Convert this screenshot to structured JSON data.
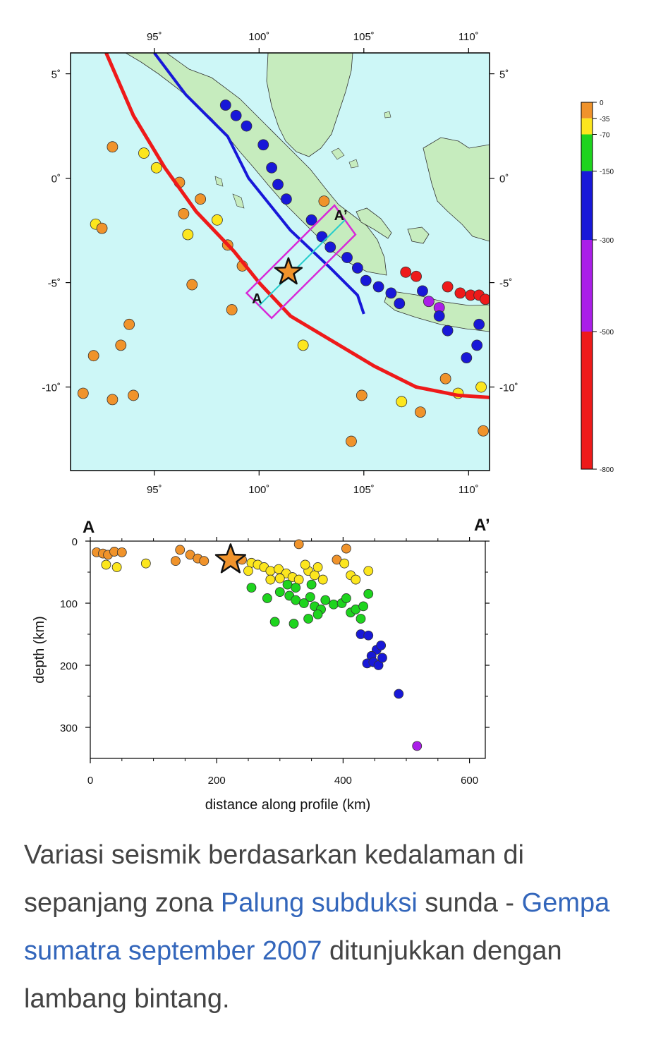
{
  "chart_data": [
    {
      "type": "scatter",
      "subtype": "map",
      "title": "",
      "xlabel": "",
      "ylabel": "",
      "xlim": [
        91,
        111
      ],
      "ylim": [
        -14,
        6
      ],
      "top_ticks": [
        {
          "v": 95,
          "t": "95˚"
        },
        {
          "v": 100,
          "t": "100˚"
        },
        {
          "v": 105,
          "t": "105˚"
        },
        {
          "v": 110,
          "t": "110˚"
        }
      ],
      "bottom_ticks": [
        {
          "v": 95,
          "t": "95˚"
        },
        {
          "v": 100,
          "t": "100˚"
        },
        {
          "v": 105,
          "t": "105˚"
        },
        {
          "v": 110,
          "t": "110˚"
        }
      ],
      "left_ticks": [
        {
          "v": 5,
          "t": "5˚"
        },
        {
          "v": 0,
          "t": "0˚"
        },
        {
          "v": -5,
          "t": "-5˚"
        },
        {
          "v": -10,
          "t": "-10˚"
        }
      ],
      "right_ticks": [
        {
          "v": 5,
          "t": "5˚"
        },
        {
          "v": 0,
          "t": "0˚"
        },
        {
          "v": -5,
          "t": "-5˚"
        },
        {
          "v": -10,
          "t": "-10˚"
        }
      ],
      "trench_line": [
        [
          92.7,
          6
        ],
        [
          94.0,
          3.0
        ],
        [
          95.5,
          0.5
        ],
        [
          97.0,
          -1.6
        ],
        [
          98.8,
          -3.5
        ],
        [
          100.0,
          -5.0
        ],
        [
          101.5,
          -6.6
        ],
        [
          103.5,
          -7.8
        ],
        [
          105.5,
          -9.0
        ],
        [
          107.5,
          -10.0
        ],
        [
          109.5,
          -10.4
        ],
        [
          111,
          -10.5
        ]
      ],
      "slab_line": [
        [
          95.0,
          6
        ],
        [
          96.5,
          4.0
        ],
        [
          98.5,
          2.0
        ],
        [
          99.5,
          0.0
        ],
        [
          101.5,
          -2.5
        ],
        [
          103.3,
          -4.2
        ],
        [
          104.7,
          -5.6
        ],
        [
          105.0,
          -6.5
        ]
      ],
      "profile_box": [
        [
          99.4,
          -5.5
        ],
        [
          103.6,
          -1.3
        ],
        [
          104.6,
          -2.7
        ],
        [
          100.6,
          -6.7
        ]
      ],
      "profile_labels": [
        {
          "t": "A",
          "x": 99.9,
          "y": -6.0
        },
        {
          "t": "A’",
          "x": 103.9,
          "y": -2.0
        }
      ],
      "star": {
        "lon": 101.4,
        "lat": -4.5
      },
      "quakes": [
        {
          "lon": 93.0,
          "lat": 1.5,
          "depth": 30
        },
        {
          "lon": 92.2,
          "lat": -2.2,
          "depth": 50
        },
        {
          "lon": 92.5,
          "lat": -2.4,
          "depth": 30
        },
        {
          "lon": 93.8,
          "lat": -7.0,
          "depth": 30
        },
        {
          "lon": 93.4,
          "lat": -8.0,
          "depth": 20
        },
        {
          "lon": 92.1,
          "lat": -8.5,
          "depth": 25
        },
        {
          "lon": 91.6,
          "lat": -10.3,
          "depth": 30
        },
        {
          "lon": 93.0,
          "lat": -10.6,
          "depth": 20
        },
        {
          "lon": 94.0,
          "lat": -10.4,
          "depth": 30
        },
        {
          "lon": 96.8,
          "lat": -5.1,
          "depth": 30
        },
        {
          "lon": 96.4,
          "lat": -1.7,
          "depth": 30
        },
        {
          "lon": 96.2,
          "lat": -0.2,
          "depth": 30
        },
        {
          "lon": 95.1,
          "lat": 0.5,
          "depth": 50
        },
        {
          "lon": 94.5,
          "lat": 1.2,
          "depth": 45
        },
        {
          "lon": 96.6,
          "lat": -2.7,
          "depth": 60
        },
        {
          "lon": 97.2,
          "lat": -1.0,
          "depth": 30
        },
        {
          "lon": 98.0,
          "lat": -2.0,
          "depth": 35
        },
        {
          "lon": 98.7,
          "lat": -6.3,
          "depth": 30
        },
        {
          "lon": 99.2,
          "lat": -4.2,
          "depth": 30
        },
        {
          "lon": 98.5,
          "lat": -3.2,
          "depth": 25
        },
        {
          "lon": 102.1,
          "lat": -8.0,
          "depth": 35
        },
        {
          "lon": 104.4,
          "lat": -12.6,
          "depth": 25
        },
        {
          "lon": 104.9,
          "lat": -10.4,
          "depth": 30
        },
        {
          "lon": 107.7,
          "lat": -11.2,
          "depth": 25
        },
        {
          "lon": 110.7,
          "lat": -12.1,
          "depth": 30
        },
        {
          "lon": 103.1,
          "lat": -1.1,
          "depth": 20
        },
        {
          "lon": 106.8,
          "lat": -10.7,
          "depth": 40
        },
        {
          "lon": 109.5,
          "lat": -10.3,
          "depth": 40
        },
        {
          "lon": 110.6,
          "lat": -10.0,
          "depth": 60
        },
        {
          "lon": 108.9,
          "lat": -9.6,
          "depth": 30
        },
        {
          "lon": 107.5,
          "lat": -4.7,
          "depth": 600
        },
        {
          "lon": 107.0,
          "lat": -4.5,
          "depth": 620
        },
        {
          "lon": 109.0,
          "lat": -5.2,
          "depth": 580
        },
        {
          "lon": 109.6,
          "lat": -5.5,
          "depth": 560
        },
        {
          "lon": 110.1,
          "lat": -5.6,
          "depth": 600
        },
        {
          "lon": 110.5,
          "lat": -5.6,
          "depth": 550
        },
        {
          "lon": 110.8,
          "lat": -5.8,
          "depth": 600
        },
        {
          "lon": 108.6,
          "lat": -6.2,
          "depth": 350
        },
        {
          "lon": 108.1,
          "lat": -5.9,
          "depth": 330
        },
        {
          "lon": 107.8,
          "lat": -5.4,
          "depth": 200
        },
        {
          "lon": 106.7,
          "lat": -6.0,
          "depth": 180
        },
        {
          "lon": 108.6,
          "lat": -6.6,
          "depth": 200
        },
        {
          "lon": 110.5,
          "lat": -7.0,
          "depth": 180
        },
        {
          "lon": 110.4,
          "lat": -8.0,
          "depth": 170
        },
        {
          "lon": 105.7,
          "lat": -5.2,
          "depth": 160
        },
        {
          "lon": 105.1,
          "lat": -4.9,
          "depth": 170
        },
        {
          "lon": 104.7,
          "lat": -4.3,
          "depth": 160
        },
        {
          "lon": 104.2,
          "lat": -3.8,
          "depth": 170
        },
        {
          "lon": 103.4,
          "lat": -3.3,
          "depth": 180
        },
        {
          "lon": 102.5,
          "lat": -2.0,
          "depth": 200
        },
        {
          "lon": 101.3,
          "lat": -1.0,
          "depth": 170
        },
        {
          "lon": 100.9,
          "lat": -0.3,
          "depth": 180
        },
        {
          "lon": 100.6,
          "lat": 0.5,
          "depth": 190
        },
        {
          "lon": 100.2,
          "lat": 1.6,
          "depth": 160
        },
        {
          "lon": 99.4,
          "lat": 2.5,
          "depth": 170
        },
        {
          "lon": 98.9,
          "lat": 3.0,
          "depth": 180
        },
        {
          "lon": 98.4,
          "lat": 3.5,
          "depth": 160
        },
        {
          "lon": 103.0,
          "lat": -2.8,
          "depth": 160
        },
        {
          "lon": 106.3,
          "lat": -5.5,
          "depth": 190
        },
        {
          "lon": 109.0,
          "lat": -7.3,
          "depth": 170
        },
        {
          "lon": 109.9,
          "lat": -8.6,
          "depth": 160
        }
      ],
      "colorbar": {
        "breaks": [
          0,
          -35,
          -70,
          -150,
          -300,
          -500,
          -800
        ],
        "labels": [
          "0",
          "-35",
          "-70",
          "-150",
          "-300",
          "-500",
          "-800"
        ],
        "colors": [
          "#f0932b",
          "#fce61e",
          "#1ed41e",
          "#1818d8",
          "#aa1ee8",
          "#ee1a1a"
        ]
      }
    },
    {
      "type": "scatter",
      "title": "",
      "xlabel": "distance along profile (km)",
      "ylabel": "depth (km)",
      "xlim": [
        0,
        625
      ],
      "ylim": [
        350,
        0
      ],
      "xticks": [
        0,
        200,
        400,
        600
      ],
      "yticks": [
        0,
        100,
        200,
        300
      ],
      "xtick_labels": [
        "0",
        "200",
        "400",
        "600"
      ],
      "ytick_labels": [
        "0",
        "100",
        "200",
        "300"
      ],
      "star": {
        "x": 222,
        "y": 30
      },
      "points": [
        {
          "x": 10,
          "y": 18
        },
        {
          "x": 20,
          "y": 20
        },
        {
          "x": 28,
          "y": 22
        },
        {
          "x": 38,
          "y": 17
        },
        {
          "x": 50,
          "y": 18
        },
        {
          "x": 25,
          "y": 38
        },
        {
          "x": 42,
          "y": 42
        },
        {
          "x": 88,
          "y": 36
        },
        {
          "x": 135,
          "y": 32
        },
        {
          "x": 142,
          "y": 14
        },
        {
          "x": 158,
          "y": 22
        },
        {
          "x": 170,
          "y": 28
        },
        {
          "x": 180,
          "y": 32
        },
        {
          "x": 330,
          "y": 5
        },
        {
          "x": 405,
          "y": 12
        },
        {
          "x": 390,
          "y": 30
        },
        {
          "x": 402,
          "y": 36
        },
        {
          "x": 440,
          "y": 48
        },
        {
          "x": 240,
          "y": 30
        },
        {
          "x": 255,
          "y": 35
        },
        {
          "x": 265,
          "y": 38
        },
        {
          "x": 275,
          "y": 42
        },
        {
          "x": 285,
          "y": 48
        },
        {
          "x": 298,
          "y": 45
        },
        {
          "x": 310,
          "y": 52
        },
        {
          "x": 320,
          "y": 58
        },
        {
          "x": 330,
          "y": 62
        },
        {
          "x": 345,
          "y": 48
        },
        {
          "x": 355,
          "y": 55
        },
        {
          "x": 360,
          "y": 42
        },
        {
          "x": 368,
          "y": 62
        },
        {
          "x": 312,
          "y": 70
        },
        {
          "x": 325,
          "y": 75
        },
        {
          "x": 340,
          "y": 38
        },
        {
          "x": 300,
          "y": 60
        },
        {
          "x": 412,
          "y": 55
        },
        {
          "x": 420,
          "y": 62
        },
        {
          "x": 250,
          "y": 48
        },
        {
          "x": 285,
          "y": 62
        },
        {
          "x": 350,
          "y": 70
        },
        {
          "x": 255,
          "y": 75
        },
        {
          "x": 280,
          "y": 92
        },
        {
          "x": 300,
          "y": 82
        },
        {
          "x": 315,
          "y": 88
        },
        {
          "x": 325,
          "y": 95
        },
        {
          "x": 338,
          "y": 100
        },
        {
          "x": 348,
          "y": 90
        },
        {
          "x": 355,
          "y": 105
        },
        {
          "x": 365,
          "y": 110
        },
        {
          "x": 372,
          "y": 95
        },
        {
          "x": 385,
          "y": 102
        },
        {
          "x": 398,
          "y": 100
        },
        {
          "x": 405,
          "y": 92
        },
        {
          "x": 412,
          "y": 115
        },
        {
          "x": 420,
          "y": 110
        },
        {
          "x": 428,
          "y": 125
        },
        {
          "x": 432,
          "y": 105
        },
        {
          "x": 440,
          "y": 85
        },
        {
          "x": 292,
          "y": 130
        },
        {
          "x": 322,
          "y": 133
        },
        {
          "x": 345,
          "y": 125
        },
        {
          "x": 360,
          "y": 118
        },
        {
          "x": 428,
          "y": 150
        },
        {
          "x": 440,
          "y": 152
        },
        {
          "x": 453,
          "y": 175
        },
        {
          "x": 460,
          "y": 168
        },
        {
          "x": 445,
          "y": 185
        },
        {
          "x": 438,
          "y": 197
        },
        {
          "x": 448,
          "y": 195
        },
        {
          "x": 456,
          "y": 200
        },
        {
          "x": 462,
          "y": 188
        },
        {
          "x": 488,
          "y": 246
        },
        {
          "x": 517,
          "y": 330
        }
      ]
    }
  ],
  "caption": {
    "part1": "Variasi seismik berdasarkan kedalaman di sepanjang zona ",
    "link1": "Palung subduksi",
    "part2": " sunda - ",
    "link2": "Gempa sumatra september 2007",
    "part3": " ditunjukkan dengan lambang bintang."
  }
}
